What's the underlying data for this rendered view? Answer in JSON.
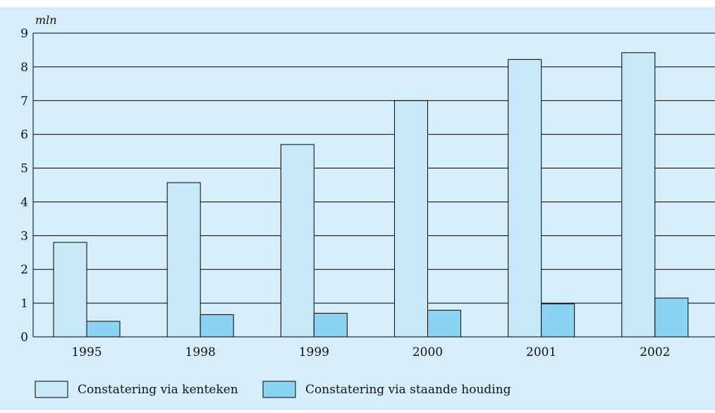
{
  "chart_data": {
    "type": "bar",
    "ylabel": "mln",
    "ylim": [
      0,
      9
    ],
    "yticks": [
      0,
      1,
      2,
      3,
      4,
      5,
      6,
      7,
      8,
      9
    ],
    "categories": [
      "1995",
      "1998",
      "1999",
      "2000",
      "2001",
      "2002"
    ],
    "series": [
      {
        "name": "Constatering via kenteken",
        "color": "#c6e8f7",
        "values": [
          2.8,
          4.57,
          5.7,
          7.0,
          8.22,
          8.42
        ]
      },
      {
        "name": "Constatering via staande houding",
        "color": "#8bd3f2",
        "values": [
          0.46,
          0.66,
          0.7,
          0.79,
          0.98,
          1.15
        ]
      }
    ],
    "grid": true,
    "legend_position": "bottom"
  },
  "colors": {
    "background": "#d6eef9",
    "gridline": "#000000",
    "bar_stroke": "#000000"
  }
}
